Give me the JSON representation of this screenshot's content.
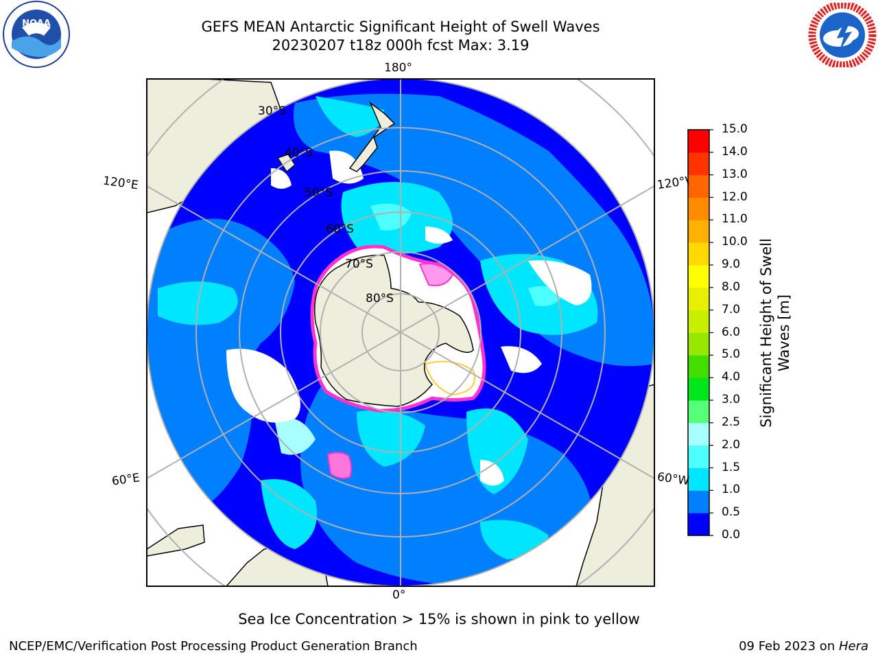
{
  "header": {
    "title_line1": "GEFS MEAN Antarctic Significant Height of Swell Waves",
    "title_line2": "20230207 t18z 000h fcst   Max: 3.19"
  },
  "map": {
    "projection": "south-polar-stereographic",
    "longitude_labels": {
      "top": "180°",
      "bottom": "0°",
      "upper_left": "120°E",
      "upper_right": "120°W",
      "lower_left": "60°E",
      "lower_right": "60°W"
    },
    "latitude_labels": [
      "30°S",
      "40°S",
      "50°S",
      "60°S",
      "70°S",
      "80°S"
    ],
    "colors": {
      "land": "#eeeedc",
      "frame": "#000000",
      "grid": "#b0b0b0",
      "ice_edge": "#ff33cc"
    }
  },
  "colorbar": {
    "title": "Significant Height of Swell Waves [m]",
    "ticks": [
      "0.0",
      "0.5",
      "1.0",
      "1.5",
      "2.0",
      "2.5",
      "3.0",
      "4.0",
      "5.0",
      "6.0",
      "7.0",
      "8.0",
      "9.0",
      "10.0",
      "11.0",
      "12.0",
      "13.0",
      "14.0",
      "15.0"
    ],
    "colors": [
      "#0000ff",
      "#0080ff",
      "#00e6ff",
      "#4dffff",
      "#a8ffff",
      "#55ff77",
      "#00e61a",
      "#44dd00",
      "#99e600",
      "#c8ee00",
      "#e6f000",
      "#ffff00",
      "#ffd900",
      "#ffb000",
      "#ff8c00",
      "#ff6600",
      "#ff3300",
      "#ff0000"
    ]
  },
  "footer": {
    "note": "Sea Ice Concentration > 15% is shown in pink to yellow",
    "left": "NCEP/EMC/Verification Post Processing Product Generation Branch",
    "right_prefix": "09 Feb 2023 on ",
    "right_host": "Hera"
  },
  "logos": {
    "left": {
      "text": "NOAA",
      "ring_text": "NATIONAL OCEANIC AND ATMOSPHERIC ADMINISTRATION"
    },
    "right": {
      "ring_text": "NATIONAL WEATHER SERVICE"
    }
  }
}
